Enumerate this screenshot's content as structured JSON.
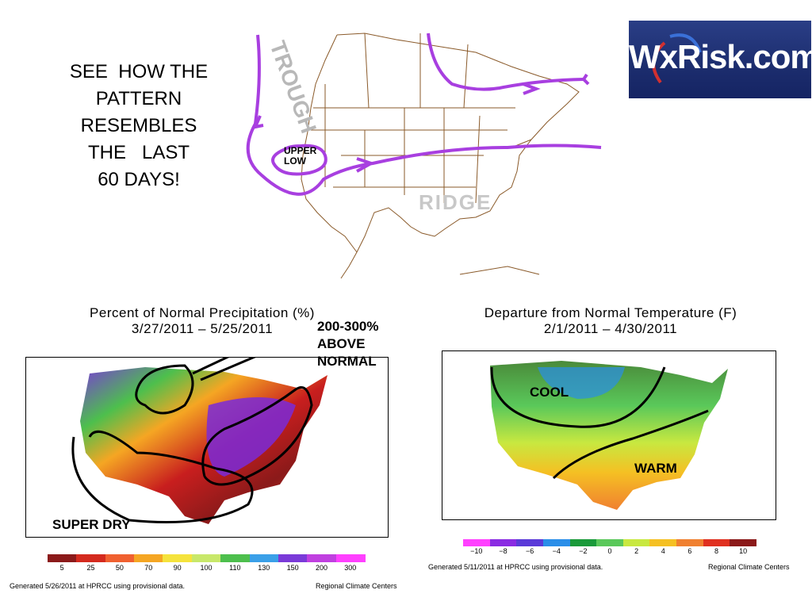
{
  "headline": {
    "lines": [
      "SEE  HOW THE",
      "PATTERN",
      "RESEMBLES",
      "THE   LAST",
      "60 DAYS!"
    ]
  },
  "logo": {
    "text": "WxRisk.com"
  },
  "top_map": {
    "labels": {
      "trough": "TROUGH",
      "upper_low_1": "UPPER",
      "upper_low_2": "LOW",
      "ridge": "RIDGE"
    },
    "colors": {
      "arrows": "#a83fe0",
      "coast": "#8a5a2a"
    }
  },
  "precip_chart": {
    "title_line1": "Percent of Normal Precipitation (%)",
    "title_line2": "3/27/2011 – 5/25/2011",
    "annotation_1": "200-300%",
    "annotation_2": "ABOVE",
    "annotation_3": "NORMAL",
    "annotation_dry": "SUPER  DRY",
    "scale_labels": [
      "5",
      "25",
      "50",
      "70",
      "90",
      "100",
      "110",
      "130",
      "150",
      "200",
      "300"
    ],
    "scale_colors": [
      "#8b1a1a",
      "#d42a1e",
      "#f06030",
      "#f5a623",
      "#f5e33c",
      "#c8e86a",
      "#4dbf4d",
      "#3aa0e8",
      "#7a3ad8",
      "#c040e0",
      "#ff40ff"
    ],
    "footer_left": "Generated 5/26/2011 at HPRCC using provisional data.",
    "footer_right": "Regional Climate Centers"
  },
  "temp_chart": {
    "title_line1": "Departure from Normal Temperature (F)",
    "title_line2": "2/1/2011 – 4/30/2011",
    "annotation_cool": "COOL",
    "annotation_warm": "WARM",
    "scale_labels": [
      "−10",
      "−8",
      "−6",
      "−4",
      "−2",
      "0",
      "2",
      "4",
      "6",
      "8",
      "10"
    ],
    "scale_colors": [
      "#ff40ff",
      "#8a2be2",
      "#5a3ad8",
      "#2a8ee8",
      "#1a9a3a",
      "#5ac85a",
      "#c8e840",
      "#f5c023",
      "#f08030",
      "#e03020",
      "#8b1a1a"
    ],
    "footer_left": "Generated 5/11/2011 at HPRCC using provisional data.",
    "footer_right": "Regional Climate Centers"
  }
}
